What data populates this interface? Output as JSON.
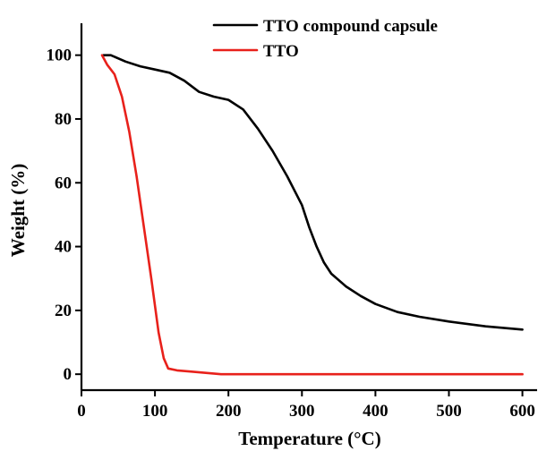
{
  "chart_data": {
    "type": "line",
    "title": "",
    "xlabel": "Temperature (°C)",
    "ylabel": "Weight (%)",
    "xlim": [
      0,
      620
    ],
    "ylim": [
      -5,
      110
    ],
    "xticks": [
      0,
      100,
      200,
      300,
      400,
      500,
      600
    ],
    "yticks": [
      0,
      20,
      40,
      60,
      80,
      100
    ],
    "grid": false,
    "legend_position": "top-right",
    "series": [
      {
        "name": "TTO compound capsule",
        "color": "#000000",
        "points": [
          [
            30,
            100
          ],
          [
            40,
            100
          ],
          [
            60,
            98
          ],
          [
            80,
            96.5
          ],
          [
            100,
            95.5
          ],
          [
            120,
            94.5
          ],
          [
            140,
            92
          ],
          [
            160,
            88.5
          ],
          [
            180,
            87
          ],
          [
            200,
            86
          ],
          [
            220,
            83
          ],
          [
            240,
            77
          ],
          [
            260,
            70
          ],
          [
            280,
            62
          ],
          [
            300,
            53
          ],
          [
            310,
            46
          ],
          [
            320,
            40
          ],
          [
            330,
            35
          ],
          [
            340,
            31.5
          ],
          [
            360,
            27.5
          ],
          [
            380,
            24.5
          ],
          [
            400,
            22
          ],
          [
            430,
            19.5
          ],
          [
            460,
            18
          ],
          [
            500,
            16.5
          ],
          [
            550,
            15
          ],
          [
            600,
            14
          ]
        ]
      },
      {
        "name": "TTO",
        "color": "#e8211b",
        "points": [
          [
            28,
            100
          ],
          [
            35,
            97
          ],
          [
            45,
            94
          ],
          [
            55,
            87
          ],
          [
            65,
            76
          ],
          [
            75,
            62
          ],
          [
            85,
            46
          ],
          [
            95,
            30
          ],
          [
            105,
            13
          ],
          [
            112,
            5
          ],
          [
            118,
            1.8
          ],
          [
            130,
            1.2
          ],
          [
            150,
            0.8
          ],
          [
            190,
            0
          ],
          [
            600,
            0
          ]
        ]
      }
    ]
  }
}
